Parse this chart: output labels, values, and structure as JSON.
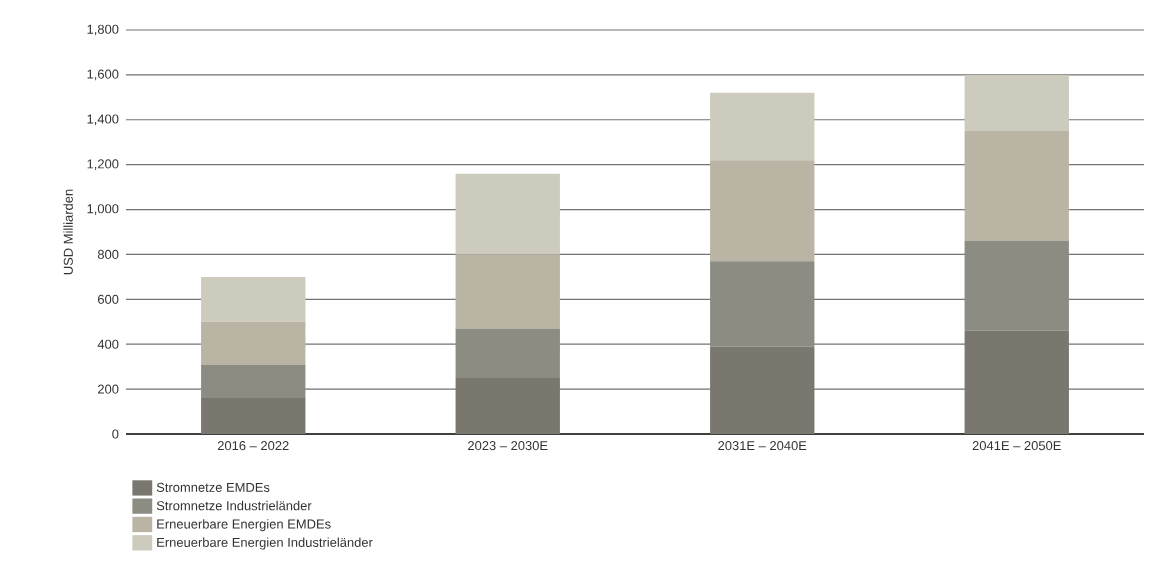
{
  "chart_data": {
    "type": "bar",
    "stacked": true,
    "ylabel": "USD Milliarden",
    "categories": [
      "2016 – 2022",
      "2023 – 2030E",
      "2031E – 2040E",
      "2041E – 2050E"
    ],
    "series": [
      {
        "name": "Stromnetze EMDEs",
        "color": "#7a776f",
        "values": [
          160,
          250,
          390,
          460
        ]
      },
      {
        "name": "Stromnetze Industrieländer",
        "color": "#8d8c83",
        "values": [
          150,
          220,
          380,
          400
        ]
      },
      {
        "name": "Erneuerbare Energien EMDEs",
        "color": "#bab4a5",
        "values": [
          190,
          330,
          450,
          490
        ]
      },
      {
        "name": "Erneuerbare Energien Industrieländer",
        "color": "#cccbbd",
        "values": [
          200,
          360,
          300,
          250
        ]
      }
    ],
    "ylim": [
      0,
      1800
    ],
    "yticks": [
      0,
      200,
      400,
      600,
      800,
      {
        "value": 1000,
        "label": "1,000"
      },
      {
        "value": 1200,
        "label": "1,200"
      },
      {
        "value": 1400,
        "label": "1,400"
      },
      {
        "value": 1600,
        "label": "1,600"
      },
      {
        "value": 1800,
        "label": "1,800"
      }
    ],
    "grid": "y",
    "legend": "bottom left"
  }
}
